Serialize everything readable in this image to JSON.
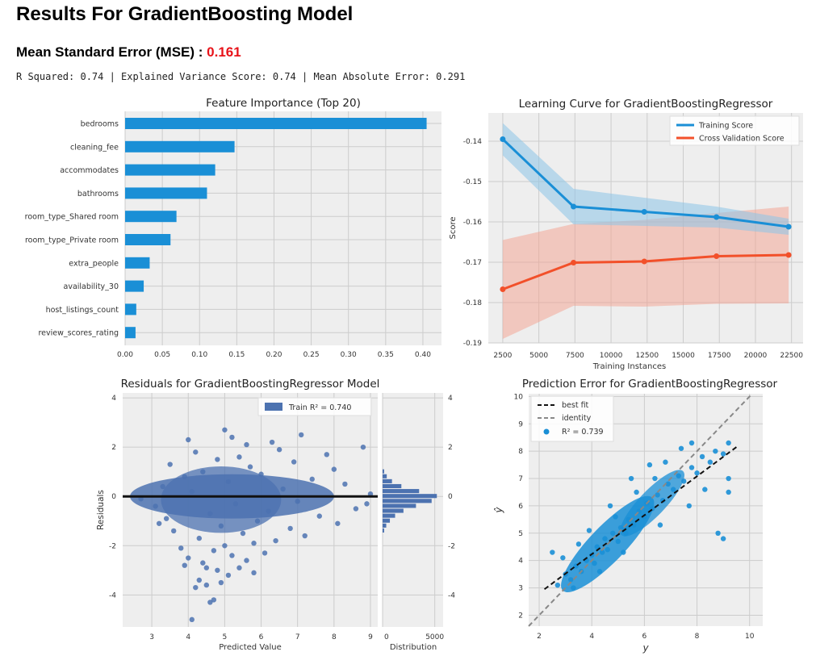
{
  "header": {
    "title": "Results For GradientBoosting Model",
    "mse_label": "Mean Standard Error (MSE) :",
    "mse_value": "0.161",
    "metrics_line": "R Squared: 0.74 | Explained Variance Score: 0.74 | Mean Absolute Error: 0.291"
  },
  "colors": {
    "bar": "#1a8fd6",
    "training": "#1a8fd6",
    "cv": "#f2502a",
    "residual": "#4c72b0",
    "prediction": "#1a8fd6",
    "panel_bg": "#eeeeee",
    "mse_value": "#e8131a"
  },
  "chart_data": [
    {
      "type": "bar",
      "orientation": "horizontal",
      "title": "Feature Importance (Top 20)",
      "categories": [
        "bedrooms",
        "cleaning_fee",
        "accommodates",
        "bathrooms",
        "room_type_Shared room",
        "room_type_Private room",
        "extra_people",
        "availability_30",
        "host_listings_count",
        "review_scores_rating"
      ],
      "values": [
        0.405,
        0.147,
        0.121,
        0.11,
        0.069,
        0.061,
        0.033,
        0.025,
        0.015,
        0.014
      ],
      "xlim": [
        0,
        0.425
      ],
      "xticks": [
        "0.00",
        "0.05",
        "0.10",
        "0.15",
        "0.20",
        "0.25",
        "0.30",
        "0.35",
        "0.40"
      ],
      "grid": true
    },
    {
      "type": "line",
      "title": "Learning Curve for GradientBoostingRegressor",
      "xlabel": "Training Instances",
      "ylabel": "Score",
      "x": [
        2500,
        7400,
        12300,
        17300,
        22300
      ],
      "xlim": [
        1500,
        23300
      ],
      "ylim": [
        -0.19,
        -0.133
      ],
      "xticks": [
        "2500",
        "5000",
        "7500",
        "10000",
        "12500",
        "15000",
        "17500",
        "20000",
        "22500"
      ],
      "yticks": [
        "-0.14",
        "-0.15",
        "-0.16",
        "-0.17",
        "-0.18",
        "-0.19"
      ],
      "legend_position": "top-right",
      "series": [
        {
          "name": "Training Score",
          "values": [
            -0.1395,
            -0.1562,
            -0.1575,
            -0.1588,
            -0.1612
          ],
          "band_upper": [
            -0.1355,
            -0.1518,
            -0.154,
            -0.1562,
            -0.1592
          ],
          "band_lower": [
            -0.1435,
            -0.1606,
            -0.161,
            -0.1614,
            -0.1632
          ]
        },
        {
          "name": "Cross Validation Score",
          "values": [
            -0.1767,
            -0.1701,
            -0.1698,
            -0.1685,
            -0.1682
          ],
          "band_upper": [
            -0.1645,
            -0.1605,
            -0.1595,
            -0.1578,
            -0.1562
          ],
          "band_lower": [
            -0.189,
            -0.1808,
            -0.181,
            -0.1803,
            -0.1802
          ]
        }
      ]
    },
    {
      "type": "scatter",
      "title": "Residuals for GradientBoostingRegressor Model",
      "xlabel": "Predicted Value",
      "ylabel": "Residuals",
      "xlim": [
        2.2,
        9.2
      ],
      "ylim": [
        -5.3,
        4.2
      ],
      "xticks": [
        "3",
        "4",
        "5",
        "6",
        "7",
        "8",
        "9"
      ],
      "yticks": [
        "4",
        "2",
        "0",
        "-2",
        "-4"
      ],
      "legend": "Train R² = 0.740",
      "legend_position": "top-right",
      "zero_line": 0,
      "points": [
        [
          4.1,
          -5.0
        ],
        [
          4.6,
          -4.3
        ],
        [
          4.7,
          -4.2
        ],
        [
          4.2,
          -3.7
        ],
        [
          4.5,
          -3.6
        ],
        [
          4.9,
          -3.5
        ],
        [
          4.3,
          -3.4
        ],
        [
          5.1,
          -3.2
        ],
        [
          4.8,
          -3.0
        ],
        [
          5.4,
          -2.9
        ],
        [
          3.9,
          -2.8
        ],
        [
          4.4,
          -2.7
        ],
        [
          5.6,
          -2.6
        ],
        [
          4.0,
          -2.5
        ],
        [
          5.2,
          -2.4
        ],
        [
          6.1,
          -2.3
        ],
        [
          4.7,
          -2.2
        ],
        [
          3.8,
          -2.1
        ],
        [
          5.0,
          -2.0
        ],
        [
          5.8,
          -1.9
        ],
        [
          6.4,
          -1.8
        ],
        [
          4.3,
          -1.7
        ],
        [
          7.2,
          -1.6
        ],
        [
          5.5,
          -1.5
        ],
        [
          3.6,
          -1.4
        ],
        [
          6.8,
          -1.3
        ],
        [
          4.9,
          -1.2
        ],
        [
          8.1,
          -1.1
        ],
        [
          5.9,
          -1.0
        ],
        [
          3.4,
          -0.9
        ],
        [
          7.6,
          -0.8
        ],
        [
          4.6,
          -0.7
        ],
        [
          6.2,
          -0.6
        ],
        [
          8.6,
          -0.5
        ],
        [
          3.1,
          -0.4
        ],
        [
          5.3,
          -0.3
        ],
        [
          7.0,
          -0.2
        ],
        [
          2.7,
          -0.1
        ],
        [
          9.0,
          0.1
        ],
        [
          4.1,
          0.2
        ],
        [
          6.6,
          0.3
        ],
        [
          3.3,
          0.4
        ],
        [
          8.3,
          0.5
        ],
        [
          5.1,
          0.6
        ],
        [
          7.4,
          0.7
        ],
        [
          3.9,
          0.8
        ],
        [
          6.0,
          0.9
        ],
        [
          4.4,
          1.0
        ],
        [
          8.0,
          1.1
        ],
        [
          5.7,
          1.2
        ],
        [
          3.5,
          1.3
        ],
        [
          6.9,
          1.4
        ],
        [
          4.8,
          1.5
        ],
        [
          5.4,
          1.6
        ],
        [
          7.8,
          1.7
        ],
        [
          4.2,
          1.8
        ],
        [
          6.5,
          1.9
        ],
        [
          5.6,
          2.1
        ],
        [
          4.0,
          2.3
        ],
        [
          5.2,
          2.4
        ],
        [
          7.1,
          2.5
        ],
        [
          5.0,
          2.7
        ],
        [
          6.3,
          2.2
        ],
        [
          8.8,
          2.0
        ],
        [
          4.5,
          -2.9
        ],
        [
          5.8,
          -3.1
        ],
        [
          3.2,
          -1.1
        ],
        [
          8.9,
          -0.3
        ]
      ],
      "histogram": {
        "xlabel": "Distribution",
        "xticks": [
          "0",
          "5000"
        ],
        "bins_center": [
          1.0,
          0.8,
          0.6,
          0.4,
          0.2,
          0.0,
          -0.2,
          -0.4,
          -0.6,
          -0.8,
          -1.0,
          -1.2,
          -1.4
        ],
        "counts": [
          150,
          400,
          900,
          1800,
          3500,
          5200,
          4700,
          3200,
          2000,
          1200,
          700,
          350,
          150
        ]
      }
    },
    {
      "type": "scatter",
      "title": "Prediction Error for GradientBoostingRegressor",
      "xlabel": "y",
      "ylabel": "ŷ",
      "xlim": [
        1.6,
        10.5
      ],
      "ylim": [
        1.6,
        10.1
      ],
      "xticks": [
        "2",
        "4",
        "6",
        "8",
        "10"
      ],
      "yticks": [
        "10",
        "9",
        "8",
        "7",
        "6",
        "5",
        "4",
        "3",
        "2"
      ],
      "legend_position": "top-left",
      "legend": [
        "best fit",
        "identity",
        "R² = 0.739"
      ],
      "best_fit": [
        [
          2.2,
          2.95
        ],
        [
          9.5,
          8.15
        ]
      ],
      "identity": [
        [
          1.6,
          1.6
        ],
        [
          10.1,
          10.1
        ]
      ],
      "points": [
        [
          2.7,
          3.1
        ],
        [
          3.0,
          3.5
        ],
        [
          3.2,
          3.3
        ],
        [
          3.4,
          3.8
        ],
        [
          3.6,
          3.6
        ],
        [
          3.8,
          4.0
        ],
        [
          4.0,
          4.2
        ],
        [
          4.1,
          3.9
        ],
        [
          4.2,
          4.5
        ],
        [
          4.4,
          4.3
        ],
        [
          4.5,
          4.8
        ],
        [
          4.6,
          4.4
        ],
        [
          4.8,
          5.0
        ],
        [
          5.0,
          4.7
        ],
        [
          5.1,
          5.2
        ],
        [
          5.3,
          5.0
        ],
        [
          5.4,
          5.5
        ],
        [
          5.6,
          5.3
        ],
        [
          5.8,
          5.8
        ],
        [
          6.0,
          5.6
        ],
        [
          6.1,
          6.1
        ],
        [
          6.3,
          5.9
        ],
        [
          6.5,
          6.4
        ],
        [
          6.7,
          6.2
        ],
        [
          6.9,
          6.8
        ],
        [
          7.1,
          6.6
        ],
        [
          7.3,
          7.1
        ],
        [
          7.5,
          6.9
        ],
        [
          7.8,
          7.4
        ],
        [
          8.0,
          7.2
        ],
        [
          8.2,
          7.8
        ],
        [
          8.5,
          7.6
        ],
        [
          8.7,
          8.0
        ],
        [
          9.0,
          7.9
        ],
        [
          9.2,
          8.3
        ],
        [
          9.2,
          7.0
        ],
        [
          9.2,
          6.5
        ],
        [
          9.0,
          4.8
        ],
        [
          8.8,
          5.0
        ],
        [
          7.8,
          8.3
        ],
        [
          7.4,
          8.1
        ],
        [
          6.8,
          7.6
        ],
        [
          2.5,
          4.3
        ],
        [
          2.9,
          4.1
        ],
        [
          3.5,
          4.6
        ],
        [
          4.7,
          6.0
        ],
        [
          5.5,
          7.0
        ],
        [
          6.2,
          7.5
        ],
        [
          3.3,
          3.0
        ],
        [
          4.3,
          3.6
        ],
        [
          5.2,
          4.3
        ],
        [
          6.6,
          5.3
        ],
        [
          7.7,
          6.0
        ],
        [
          8.3,
          6.6
        ],
        [
          4.9,
          5.6
        ],
        [
          5.7,
          6.5
        ],
        [
          6.4,
          7.0
        ],
        [
          3.9,
          5.1
        ]
      ]
    }
  ]
}
